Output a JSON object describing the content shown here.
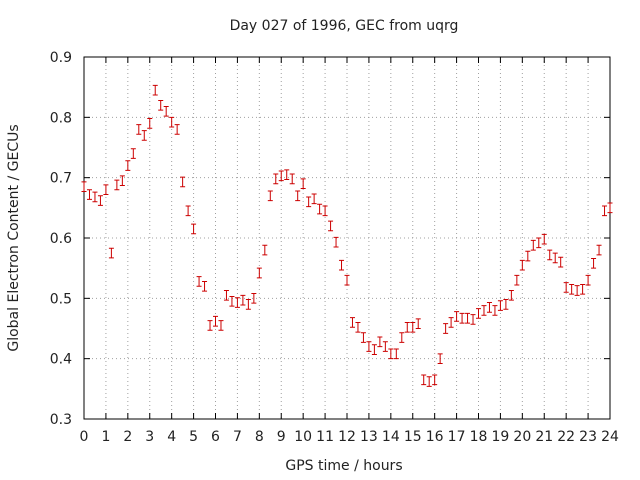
{
  "chart_data": {
    "type": "scatter",
    "title": "Day 027 of 1996, GEC from uqrg",
    "xlabel": "GPS time / hours",
    "ylabel": "Global Electron Content / GECUs",
    "xlim": [
      0,
      24
    ],
    "ylim": [
      0.3,
      0.9
    ],
    "xticks": [
      0,
      1,
      2,
      3,
      4,
      5,
      6,
      7,
      8,
      9,
      10,
      11,
      12,
      13,
      14,
      15,
      16,
      17,
      18,
      19,
      20,
      21,
      22,
      23,
      24
    ],
    "yticks": [
      0.3,
      0.4,
      0.5,
      0.6,
      0.7,
      0.8,
      0.9
    ],
    "grid": true,
    "legend": "none",
    "series": [
      {
        "color": "#cc0000",
        "marker": "error-bar",
        "error": 0.008,
        "x": [
          0.0,
          0.25,
          0.5,
          0.75,
          1.0,
          1.25,
          1.5,
          1.75,
          2.0,
          2.25,
          2.5,
          2.75,
          3.0,
          3.25,
          3.5,
          3.75,
          4.0,
          4.25,
          4.5,
          4.75,
          5.0,
          5.25,
          5.5,
          5.75,
          6.0,
          6.25,
          6.5,
          6.75,
          7.0,
          7.25,
          7.5,
          7.75,
          8.0,
          8.25,
          8.5,
          8.75,
          9.0,
          9.25,
          9.5,
          9.75,
          10.0,
          10.25,
          10.5,
          10.75,
          11.0,
          11.25,
          11.5,
          11.75,
          12.0,
          12.25,
          12.5,
          12.75,
          13.0,
          13.25,
          13.5,
          13.75,
          14.0,
          14.25,
          14.5,
          14.75,
          15.0,
          15.25,
          15.5,
          15.75,
          16.0,
          16.25,
          16.5,
          16.75,
          17.0,
          17.25,
          17.5,
          17.75,
          18.0,
          18.25,
          18.5,
          18.75,
          19.0,
          19.25,
          19.5,
          19.75,
          20.0,
          20.25,
          20.5,
          20.75,
          21.0,
          21.25,
          21.5,
          21.75,
          22.0,
          22.25,
          22.5,
          22.75,
          23.0,
          23.25,
          23.5,
          23.75,
          24.0
        ],
        "y": [
          0.685,
          0.672,
          0.668,
          0.662,
          0.68,
          0.575,
          0.688,
          0.695,
          0.72,
          0.74,
          0.78,
          0.77,
          0.79,
          0.845,
          0.82,
          0.81,
          0.792,
          0.78,
          0.693,
          0.645,
          0.615,
          0.528,
          0.52,
          0.455,
          0.462,
          0.455,
          0.505,
          0.495,
          0.493,
          0.497,
          0.49,
          0.5,
          0.542,
          0.58,
          0.67,
          0.698,
          0.703,
          0.705,
          0.698,
          0.67,
          0.69,
          0.66,
          0.665,
          0.648,
          0.645,
          0.62,
          0.593,
          0.555,
          0.53,
          0.46,
          0.452,
          0.435,
          0.42,
          0.415,
          0.428,
          0.42,
          0.408,
          0.408,
          0.435,
          0.452,
          0.452,
          0.458,
          0.365,
          0.362,
          0.365,
          0.4,
          0.45,
          0.46,
          0.47,
          0.467,
          0.467,
          0.465,
          0.475,
          0.48,
          0.485,
          0.48,
          0.488,
          0.49,
          0.505,
          0.53,
          0.555,
          0.57,
          0.588,
          0.592,
          0.598,
          0.572,
          0.567,
          0.56,
          0.518,
          0.515,
          0.513,
          0.515,
          0.53,
          0.558,
          0.58,
          0.645,
          0.65
        ]
      }
    ]
  }
}
